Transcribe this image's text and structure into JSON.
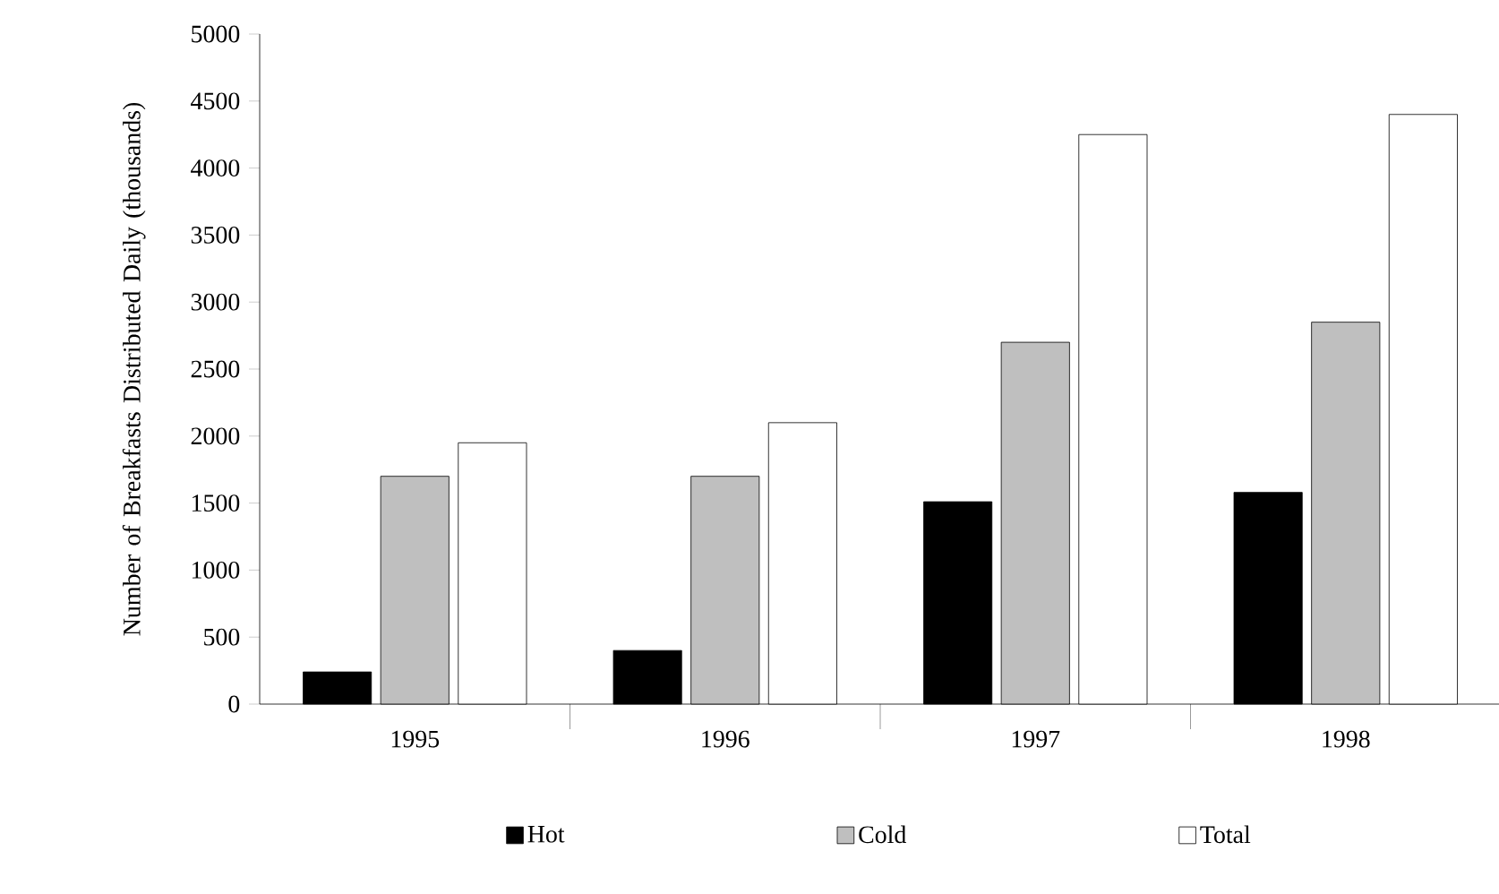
{
  "chart_data": {
    "type": "bar",
    "ylabel": "Number of Breakfasts Distributed Daily (thousands)",
    "categories": [
      "1995",
      "1996",
      "1997",
      "1998"
    ],
    "series": [
      {
        "name": "Hot",
        "color": "#000000",
        "values": [
          240,
          400,
          1510,
          1580
        ]
      },
      {
        "name": "Cold",
        "color": "#bfbfbf",
        "values": [
          1700,
          1700,
          2700,
          2850
        ]
      },
      {
        "name": "Total",
        "color": "#ffffff",
        "values": [
          1950,
          2100,
          4250,
          4400
        ]
      }
    ],
    "ylim": [
      0,
      5000
    ],
    "yticks": [
      0,
      500,
      1000,
      1500,
      2000,
      2500,
      3000,
      3500,
      4000,
      4500,
      5000
    ],
    "grid": false,
    "legend": "bottom"
  }
}
